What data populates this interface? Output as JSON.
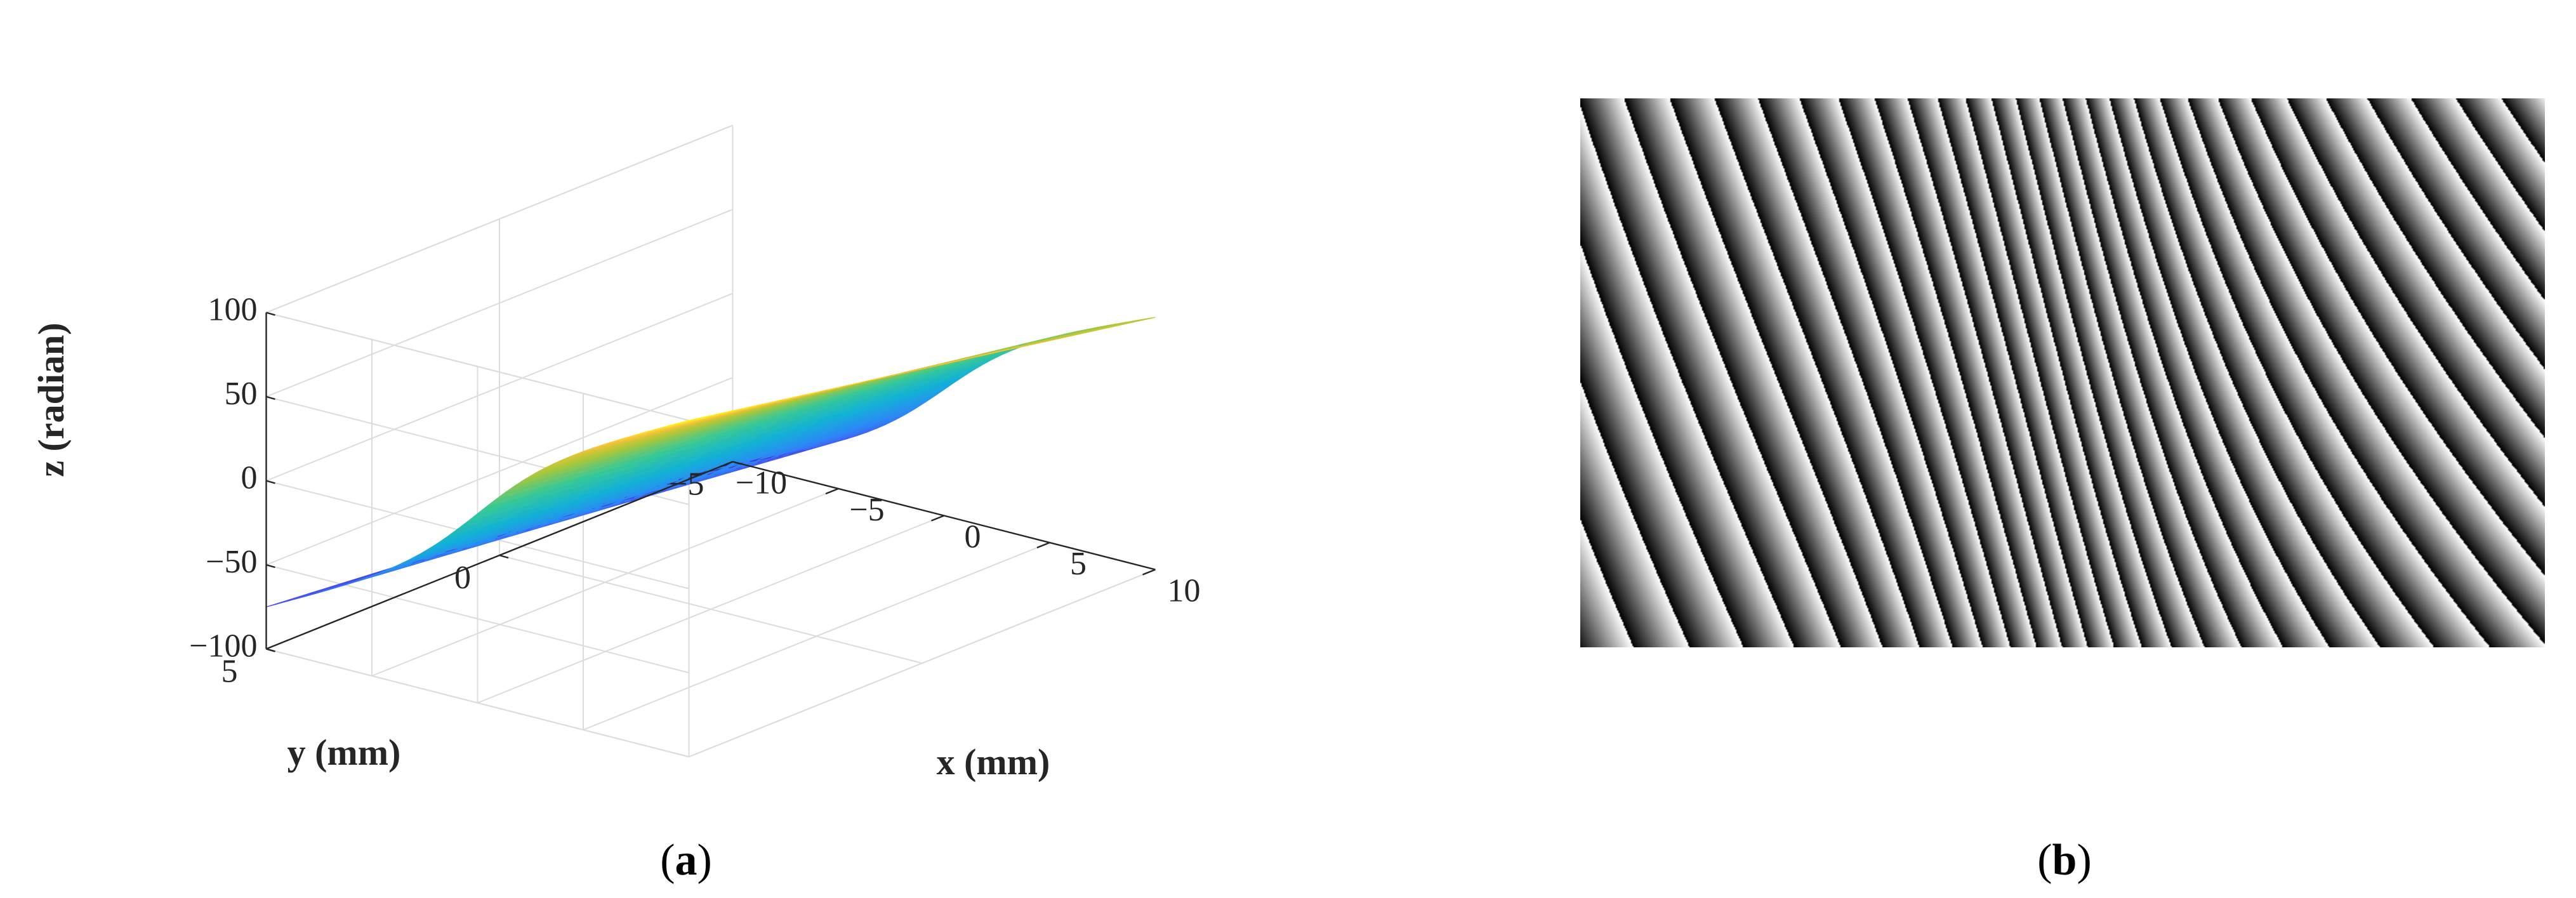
{
  "chart_data": [
    {
      "type": "surface3d",
      "panel": "a",
      "colormap": "parula",
      "xlabel": "x (mm)",
      "ylabel": "y (mm)",
      "zlabel": "z (radian)",
      "xlim": [
        -10,
        10
      ],
      "ylim": [
        -5,
        5
      ],
      "zlim": [
        -100,
        100
      ],
      "x_ticks": [
        -10,
        -5,
        0,
        5,
        10
      ],
      "y_ticks": [
        -5,
        0,
        5
      ],
      "z_ticks": [
        -100,
        -50,
        0,
        50,
        100
      ],
      "x_tick_labels": [
        "−10",
        "−5",
        "0",
        "5",
        "10"
      ],
      "y_tick_labels": [
        "−5",
        "0",
        "5"
      ],
      "z_tick_labels": [
        "−100",
        "−50",
        "0",
        "50",
        "100"
      ],
      "grid": true,
      "corner_values": {
        "x_min_y_max": -75,
        "x_min_y_min": -100,
        "x_max_y_max": 100,
        "x_max_y_min": 50
      }
    },
    {
      "type": "fringe-image",
      "panel": "b",
      "colormap": "gray",
      "description_values": {
        "wrapped_phase_range": [
          -3.14159,
          3.14159
        ]
      }
    }
  ],
  "captions": {
    "a": {
      "open": "(",
      "letter": "a",
      "close": ")"
    },
    "b": {
      "open": "(",
      "letter": "b",
      "close": ")"
    }
  }
}
